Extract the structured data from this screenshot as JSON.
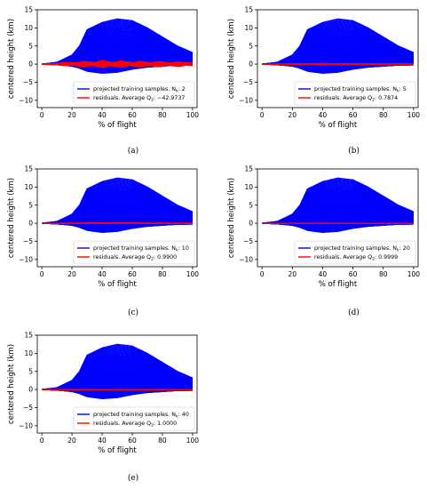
{
  "chart_data": [
    {
      "panel": "(a)",
      "type": "line",
      "xlabel": "% of flight",
      "ylabel": "centered height (km)",
      "xlim": [
        -3,
        103
      ],
      "ylim": [
        -12,
        15
      ],
      "xticks": [
        0,
        20,
        40,
        60,
        80,
        100
      ],
      "yticks": [
        -10,
        -5,
        0,
        5,
        10,
        15
      ],
      "legend_position": "lower-right",
      "grid": false,
      "series": [
        {
          "name": "projected training samples. N_k: 2",
          "legend_label": "projected training samples. N",
          "legend_sub": "k",
          "legend_value": ": 2",
          "color": "#0000ff",
          "x": [
            0,
            10,
            20,
            25,
            30,
            40,
            50,
            60,
            70,
            80,
            90,
            100
          ],
          "upper_envelope": [
            0,
            0.5,
            2.5,
            5,
            9.5,
            11.5,
            12.5,
            12.0,
            10,
            7.5,
            5,
            3.2
          ],
          "lower_envelope": [
            0,
            -0.3,
            -1,
            -2,
            -3.5,
            -4.5,
            -4,
            -2.5,
            -1.5,
            -1,
            -0.5,
            -0.4
          ]
        },
        {
          "name": "residuals. Average Q_2: -42.9737",
          "legend_label": "residuals. Average Q",
          "legend_sub": "2",
          "legend_value": ": −42.9737",
          "color": "#ff0000",
          "x": [
            0,
            20,
            40,
            60,
            80,
            100
          ],
          "upper_envelope": [
            0,
            0.6,
            1.0,
            0.8,
            0.7,
            0.6
          ],
          "lower_envelope": [
            0,
            -0.6,
            -1.0,
            -0.8,
            -0.7,
            -0.6
          ]
        }
      ]
    },
    {
      "panel": "(b)",
      "type": "line",
      "xlabel": "% of flight",
      "ylabel": "centered height (km)",
      "xlim": [
        -3,
        103
      ],
      "ylim": [
        -12,
        15
      ],
      "xticks": [
        0,
        20,
        40,
        60,
        80,
        100
      ],
      "yticks": [
        -10,
        -5,
        0,
        5,
        10,
        15
      ],
      "legend_position": "lower-right",
      "grid": false,
      "series": [
        {
          "name": "projected training samples. N_k: 5",
          "legend_label": "projected training samples. N",
          "legend_sub": "k",
          "legend_value": ": 5",
          "color": "#0000ff",
          "x": [
            0,
            10,
            20,
            25,
            30,
            40,
            50,
            60,
            70,
            80,
            90,
            100
          ],
          "upper_envelope": [
            0,
            0.5,
            2.5,
            5,
            9.5,
            11.5,
            12.5,
            12.0,
            10,
            7.5,
            5,
            3.2
          ],
          "lower_envelope": [
            0,
            -0.3,
            -1,
            -2,
            -3.5,
            -4.5,
            -4,
            -2.5,
            -1.5,
            -1,
            -0.5,
            -0.4
          ]
        },
        {
          "name": "residuals. Average Q_2: 0.7874",
          "legend_label": "residuals. Average Q",
          "legend_sub": "2",
          "legend_value": ": 0.7874",
          "color": "#ff0000",
          "x": [
            0,
            20,
            40,
            60,
            80,
            100
          ],
          "upper_envelope": [
            0,
            0.1,
            0.2,
            0.15,
            0.1,
            0.1
          ],
          "lower_envelope": [
            0,
            -0.1,
            -0.2,
            -0.15,
            -0.1,
            -0.1
          ]
        }
      ]
    },
    {
      "panel": "(c)",
      "type": "line",
      "xlabel": "% of flight",
      "ylabel": "centered height (km)",
      "xlim": [
        -3,
        103
      ],
      "ylim": [
        -12,
        15
      ],
      "xticks": [
        0,
        20,
        40,
        60,
        80,
        100
      ],
      "yticks": [
        -10,
        -5,
        0,
        5,
        10,
        15
      ],
      "legend_position": "lower-right",
      "grid": false,
      "series": [
        {
          "name": "projected training samples. N_k: 10",
          "legend_label": "projected training samples. N",
          "legend_sub": "k",
          "legend_value": ": 10",
          "color": "#0000ff",
          "x": [
            0,
            10,
            20,
            25,
            30,
            40,
            50,
            60,
            70,
            80,
            90,
            100
          ],
          "upper_envelope": [
            0,
            0.5,
            2.5,
            5,
            9.5,
            11.5,
            12.5,
            12.0,
            10,
            7.5,
            5,
            3.2
          ],
          "lower_envelope": [
            0,
            -0.3,
            -1,
            -2,
            -3.5,
            -4.5,
            -4,
            -2.5,
            -1.5,
            -1,
            -0.5,
            -0.4
          ]
        },
        {
          "name": "residuals. Average Q_2: 0.9900",
          "legend_label": "residuals. Average Q",
          "legend_sub": "2",
          "legend_value": ": 0.9900",
          "color": "#ff0000",
          "x": [
            0,
            20,
            40,
            60,
            80,
            100
          ],
          "upper_envelope": [
            0,
            0.05,
            0.08,
            0.06,
            0.05,
            0.05
          ],
          "lower_envelope": [
            0,
            -0.05,
            -0.08,
            -0.06,
            -0.05,
            -0.05
          ]
        }
      ]
    },
    {
      "panel": "(d)",
      "type": "line",
      "xlabel": "% of flight",
      "ylabel": "centered height (km)",
      "xlim": [
        -3,
        103
      ],
      "ylim": [
        -12,
        15
      ],
      "xticks": [
        0,
        20,
        40,
        60,
        80,
        100
      ],
      "yticks": [
        -10,
        -5,
        0,
        5,
        10,
        15
      ],
      "legend_position": "lower-right",
      "grid": false,
      "series": [
        {
          "name": "projected training samples. N_k: 20",
          "legend_label": "projected training samples. N",
          "legend_sub": "k",
          "legend_value": ": 20",
          "color": "#0000ff",
          "x": [
            0,
            10,
            20,
            25,
            30,
            40,
            50,
            60,
            70,
            80,
            90,
            100
          ],
          "upper_envelope": [
            0,
            0.5,
            2.5,
            5,
            9.5,
            11.5,
            12.5,
            12.0,
            10,
            7.5,
            5,
            3.2
          ],
          "lower_envelope": [
            0,
            -0.3,
            -1,
            -2,
            -3.5,
            -4.5,
            -4,
            -2.5,
            -1.5,
            -1,
            -0.5,
            -0.4
          ]
        },
        {
          "name": "residuals. Average Q_2: 0.9999",
          "legend_label": "residuals. Average Q",
          "legend_sub": "2",
          "legend_value": ": 0.9999",
          "color": "#ff0000",
          "x": [
            0,
            20,
            40,
            60,
            80,
            100
          ],
          "upper_envelope": [
            0,
            0.02,
            0.03,
            0.02,
            0.02,
            0.02
          ],
          "lower_envelope": [
            0,
            -0.02,
            -0.03,
            -0.02,
            -0.02,
            -0.02
          ]
        }
      ]
    },
    {
      "panel": "(e)",
      "type": "line",
      "xlabel": "% of flight",
      "ylabel": "centered height (km)",
      "xlim": [
        -3,
        103
      ],
      "ylim": [
        -12,
        15
      ],
      "xticks": [
        0,
        20,
        40,
        60,
        80,
        100
      ],
      "yticks": [
        -10,
        -5,
        0,
        5,
        10,
        15
      ],
      "legend_position": "lower-right",
      "grid": false,
      "series": [
        {
          "name": "projected training samples. N_k: 40",
          "legend_label": "projected training samples. N",
          "legend_sub": "k",
          "legend_value": ": 40",
          "color": "#0000ff",
          "x": [
            0,
            10,
            20,
            25,
            30,
            40,
            50,
            60,
            70,
            80,
            90,
            100
          ],
          "upper_envelope": [
            0,
            0.5,
            2.5,
            5,
            9.5,
            11.5,
            12.5,
            12.0,
            10,
            7.5,
            5,
            3.2
          ],
          "lower_envelope": [
            0,
            -0.3,
            -1,
            -2,
            -3.5,
            -4.5,
            -4,
            -2.5,
            -1.5,
            -1,
            -0.5,
            -0.4
          ]
        },
        {
          "name": "residuals. Average Q_2: 1.0000",
          "legend_label": "residuals. Average Q",
          "legend_sub": "2",
          "legend_value": ": 1.0000",
          "color": "#ff0000",
          "x": [
            0,
            20,
            40,
            60,
            80,
            100
          ],
          "upper_envelope": [
            0,
            0.01,
            0.01,
            0.01,
            0.01,
            0.01
          ],
          "lower_envelope": [
            0,
            -0.01,
            -0.01,
            -0.01,
            -0.01,
            -0.01
          ]
        }
      ]
    }
  ]
}
